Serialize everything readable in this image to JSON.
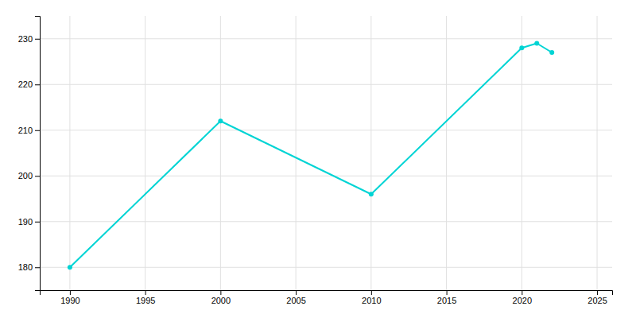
{
  "chart_data": {
    "type": "line",
    "x": [
      1990,
      2000,
      2010,
      2020,
      2021,
      2022
    ],
    "values": [
      180,
      212,
      196,
      228,
      229,
      227
    ],
    "color": "#00d4d4",
    "marker": "circle",
    "xlim": [
      1988,
      2026
    ],
    "ylim": [
      175,
      235
    ],
    "xticks": [
      1990,
      1995,
      2000,
      2005,
      2010,
      2015,
      2020,
      2025
    ],
    "yticks": [
      180,
      190,
      200,
      210,
      220,
      230
    ],
    "grid": true
  }
}
